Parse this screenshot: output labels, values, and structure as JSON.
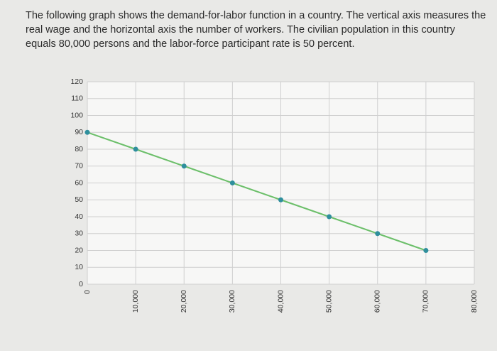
{
  "chart_data": {
    "type": "line",
    "title": "The following graph shows the demand-for-labor function in a country. The vertical axis measures the real wage and the horizontal axis the number of workers. The civilian population in this country equals 80,000 persons and the labor-force participant rate is 50 percent.",
    "x": [
      0,
      10000,
      20000,
      30000,
      40000,
      50000,
      60000,
      70000
    ],
    "series": [
      {
        "color": "#6cbf6a",
        "marker_color": "#2f8f9d",
        "values": [
          90,
          80,
          70,
          60,
          50,
          40,
          30,
          20
        ]
      }
    ],
    "xlim": [
      0,
      80000
    ],
    "xticks": [
      0,
      {
        "value": 10000,
        "label": "10,000"
      },
      {
        "value": 20000,
        "label": "20,000"
      },
      {
        "value": 30000,
        "label": "30,000"
      },
      {
        "value": 40000,
        "label": "40,000"
      },
      {
        "value": 50000,
        "label": "50,000"
      },
      {
        "value": 60000,
        "label": "60,000"
      },
      {
        "value": 70000,
        "label": "70,000"
      },
      {
        "value": 80000,
        "label": "80,000"
      }
    ],
    "ylim": [
      0,
      120
    ],
    "yticks": [
      0,
      10,
      20,
      30,
      40,
      50,
      60,
      70,
      80,
      90,
      100,
      110,
      120
    ],
    "grid": true
  }
}
